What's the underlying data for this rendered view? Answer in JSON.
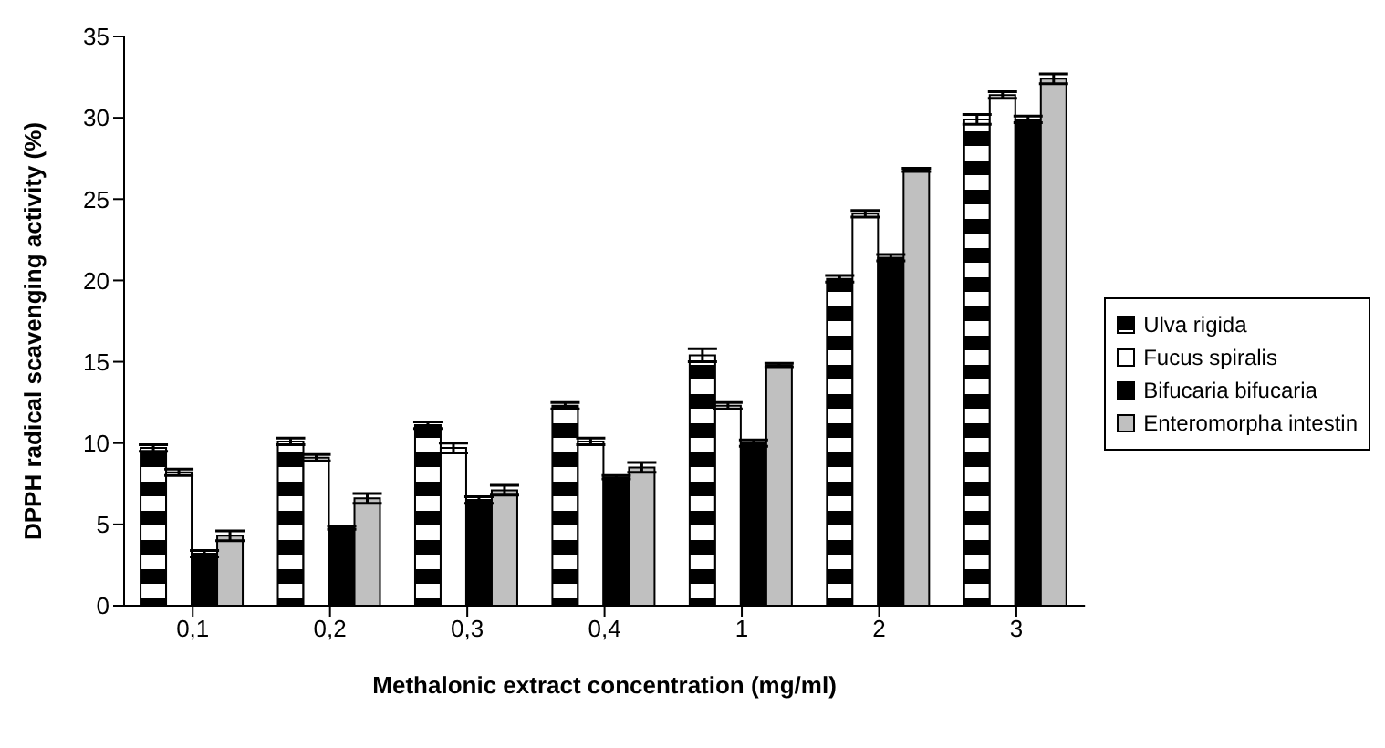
{
  "chart_data": {
    "type": "bar",
    "xlabel": "Methalonic extract concentration (mg/ml)",
    "ylabel": "DPPH radical scavenging activity (%)",
    "categories": [
      "0,1",
      "0,2",
      "0,3",
      "0,4",
      "1",
      "2",
      "3"
    ],
    "series": [
      {
        "name": "Ulva rigida",
        "color": "#000000",
        "values": [
          9.7,
          10.1,
          11.1,
          12.3,
          15.4,
          20.1,
          29.9
        ],
        "errors": [
          0.2,
          0.2,
          0.2,
          0.2,
          0.4,
          0.2,
          0.3
        ]
      },
      {
        "name": "Fucus spiralis",
        "color": "#ffffff",
        "values": [
          8.2,
          9.1,
          9.7,
          10.1,
          12.3,
          24.1,
          31.4
        ],
        "errors": [
          0.2,
          0.2,
          0.3,
          0.2,
          0.2,
          0.2,
          0.2
        ]
      },
      {
        "name": "Bifucaria bifucaria",
        "color": "#000000",
        "values": [
          3.2,
          4.8,
          6.5,
          7.9,
          10.0,
          21.4,
          29.9
        ],
        "errors": [
          0.2,
          0.1,
          0.2,
          0.1,
          0.2,
          0.2,
          0.2
        ]
      },
      {
        "name": "Enteromorpha intestin",
        "color": "#c0c0c0",
        "values": [
          4.3,
          6.6,
          7.1,
          8.5,
          14.8,
          26.8,
          32.4
        ],
        "errors": [
          0.3,
          0.3,
          0.3,
          0.3,
          0.1,
          0.1,
          0.3
        ]
      }
    ],
    "ylim": [
      0,
      35
    ],
    "yticks": [
      0,
      5,
      10,
      15,
      20,
      25,
      30,
      35
    ],
    "grid": false,
    "legend": "right"
  }
}
